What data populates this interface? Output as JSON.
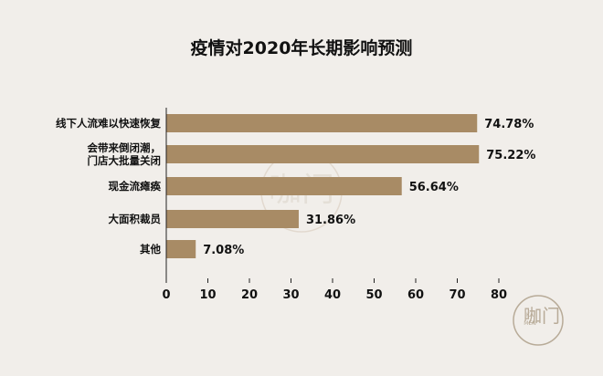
{
  "chart_data": {
    "type": "bar",
    "orientation": "horizontal",
    "title": "疫情对2020年长期影响预测",
    "categories": [
      [
        "线下人流难以快速恢复"
      ],
      [
        "会带来倒闭潮，",
        "门店大批量关闭"
      ],
      [
        "现金流瘫痪"
      ],
      [
        "大面积裁员"
      ],
      [
        "其他"
      ]
    ],
    "values": [
      74.78,
      75.22,
      56.64,
      31.86,
      7.08
    ],
    "value_labels": [
      "74.78%",
      "75.22%",
      "56.64%",
      "31.86%",
      "7.08%"
    ],
    "xlim": [
      0,
      80
    ],
    "xticks": [
      "0",
      "10",
      "20",
      "30",
      "40",
      "50",
      "60",
      "70",
      "80"
    ],
    "xlabel": "",
    "ylabel": "",
    "grid": false,
    "bar_color": "#a88b65"
  },
  "watermark": {
    "brand_text": "咖门",
    "sub_text": "KA MEN",
    "color": "#b8ab98"
  }
}
